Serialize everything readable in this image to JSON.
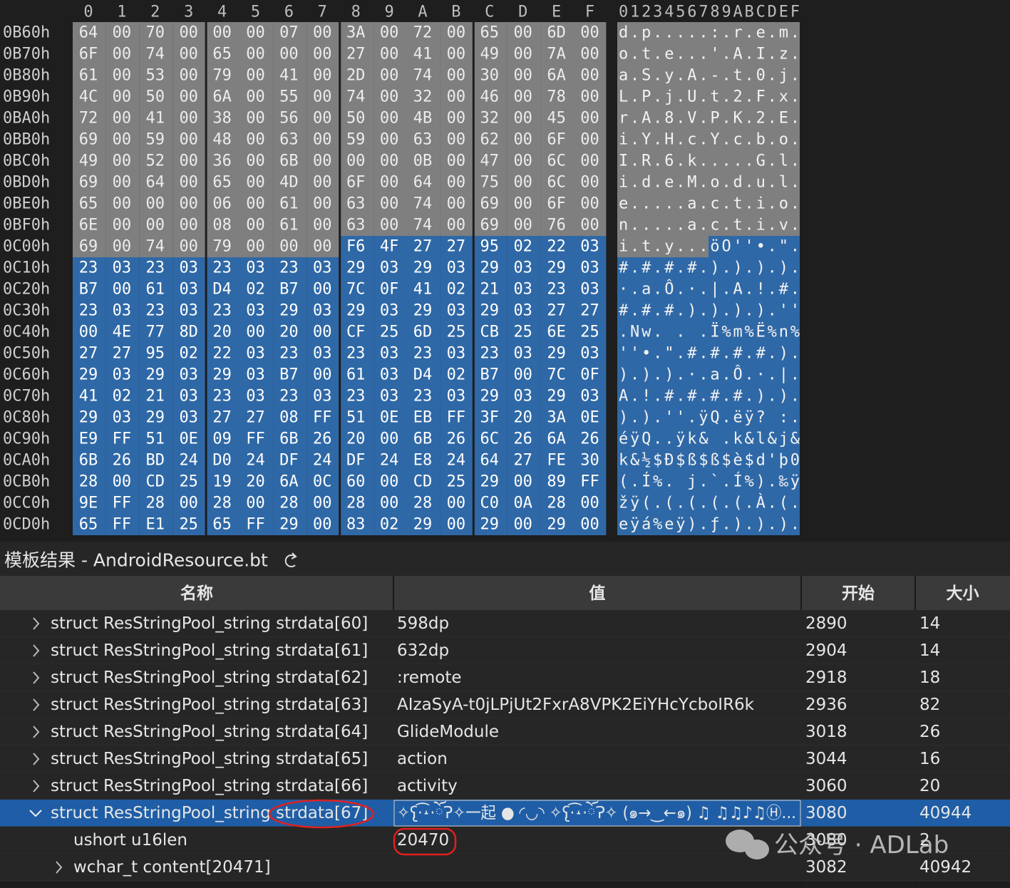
{
  "hex_view": {
    "column_headers": [
      "0",
      "1",
      "2",
      "3",
      "4",
      "5",
      "6",
      "7",
      "8",
      "9",
      "A",
      "B",
      "C",
      "D",
      "E",
      "F"
    ],
    "ascii_header": "0123456789ABCDEF",
    "rows": [
      {
        "offset": "0B60h",
        "bytes": [
          "64",
          "00",
          "70",
          "00",
          "00",
          "00",
          "07",
          "00",
          "3A",
          "00",
          "72",
          "00",
          "65",
          "00",
          "6D",
          "00"
        ],
        "ascii": "d.p.....:.r.e.m."
      },
      {
        "offset": "0B70h",
        "bytes": [
          "6F",
          "00",
          "74",
          "00",
          "65",
          "00",
          "00",
          "00",
          "27",
          "00",
          "41",
          "00",
          "49",
          "00",
          "7A",
          "00"
        ],
        "ascii": "o.t.e...'.A.I.z."
      },
      {
        "offset": "0B80h",
        "bytes": [
          "61",
          "00",
          "53",
          "00",
          "79",
          "00",
          "41",
          "00",
          "2D",
          "00",
          "74",
          "00",
          "30",
          "00",
          "6A",
          "00"
        ],
        "ascii": "a.S.y.A.-.t.0.j."
      },
      {
        "offset": "0B90h",
        "bytes": [
          "4C",
          "00",
          "50",
          "00",
          "6A",
          "00",
          "55",
          "00",
          "74",
          "00",
          "32",
          "00",
          "46",
          "00",
          "78",
          "00"
        ],
        "ascii": "L.P.j.U.t.2.F.x."
      },
      {
        "offset": "0BA0h",
        "bytes": [
          "72",
          "00",
          "41",
          "00",
          "38",
          "00",
          "56",
          "00",
          "50",
          "00",
          "4B",
          "00",
          "32",
          "00",
          "45",
          "00"
        ],
        "ascii": "r.A.8.V.P.K.2.E."
      },
      {
        "offset": "0BB0h",
        "bytes": [
          "69",
          "00",
          "59",
          "00",
          "48",
          "00",
          "63",
          "00",
          "59",
          "00",
          "63",
          "00",
          "62",
          "00",
          "6F",
          "00"
        ],
        "ascii": "i.Y.H.c.Y.c.b.o."
      },
      {
        "offset": "0BC0h",
        "bytes": [
          "49",
          "00",
          "52",
          "00",
          "36",
          "00",
          "6B",
          "00",
          "00",
          "00",
          "0B",
          "00",
          "47",
          "00",
          "6C",
          "00"
        ],
        "ascii": "I.R.6.k.....G.l."
      },
      {
        "offset": "0BD0h",
        "bytes": [
          "69",
          "00",
          "64",
          "00",
          "65",
          "00",
          "4D",
          "00",
          "6F",
          "00",
          "64",
          "00",
          "75",
          "00",
          "6C",
          "00"
        ],
        "ascii": "i.d.e.M.o.d.u.l."
      },
      {
        "offset": "0BE0h",
        "bytes": [
          "65",
          "00",
          "00",
          "00",
          "06",
          "00",
          "61",
          "00",
          "63",
          "00",
          "74",
          "00",
          "69",
          "00",
          "6F",
          "00"
        ],
        "ascii": "e.....a.c.t.i.o."
      },
      {
        "offset": "0BF0h",
        "bytes": [
          "6E",
          "00",
          "00",
          "00",
          "08",
          "00",
          "61",
          "00",
          "63",
          "00",
          "74",
          "00",
          "69",
          "00",
          "76",
          "00"
        ],
        "ascii": "n.....a.c.t.i.v."
      },
      {
        "offset": "0C00h",
        "bytes": [
          "69",
          "00",
          "74",
          "00",
          "79",
          "00",
          "00",
          "00",
          "F6",
          "4F",
          "27",
          "27",
          "95",
          "02",
          "22",
          "03"
        ],
        "ascii": "i.t.y...öO''•.\"."
      },
      {
        "offset": "0C10h",
        "bytes": [
          "23",
          "03",
          "23",
          "03",
          "23",
          "03",
          "23",
          "03",
          "29",
          "03",
          "29",
          "03",
          "29",
          "03",
          "29",
          "03"
        ],
        "ascii": "#.#.#.#.).).).)."
      },
      {
        "offset": "0C20h",
        "bytes": [
          "B7",
          "00",
          "61",
          "03",
          "D4",
          "02",
          "B7",
          "00",
          "7C",
          "0F",
          "41",
          "02",
          "21",
          "03",
          "23",
          "03"
        ],
        "ascii": "·.a.Ô.·.|.A.!.#."
      },
      {
        "offset": "0C30h",
        "bytes": [
          "23",
          "03",
          "23",
          "03",
          "23",
          "03",
          "29",
          "03",
          "29",
          "03",
          "29",
          "03",
          "29",
          "03",
          "27",
          "27"
        ],
        "ascii": "#.#.#.).).).).''"
      },
      {
        "offset": "0C40h",
        "bytes": [
          "00",
          "4E",
          "77",
          "8D",
          "20",
          "00",
          "20",
          "00",
          "CF",
          "25",
          "6D",
          "25",
          "CB",
          "25",
          "6E",
          "25"
        ],
        "ascii": ".Nw. . .Ï%m%Ë%n%"
      },
      {
        "offset": "0C50h",
        "bytes": [
          "27",
          "27",
          "95",
          "02",
          "22",
          "03",
          "23",
          "03",
          "23",
          "03",
          "23",
          "03",
          "23",
          "03",
          "29",
          "03"
        ],
        "ascii": "''•.\".#.#.#.#.)."
      },
      {
        "offset": "0C60h",
        "bytes": [
          "29",
          "03",
          "29",
          "03",
          "29",
          "03",
          "B7",
          "00",
          "61",
          "03",
          "D4",
          "02",
          "B7",
          "00",
          "7C",
          "0F"
        ],
        "ascii": ").).).·.a.Ô.·.|."
      },
      {
        "offset": "0C70h",
        "bytes": [
          "41",
          "02",
          "21",
          "03",
          "23",
          "03",
          "23",
          "03",
          "23",
          "03",
          "23",
          "03",
          "29",
          "03",
          "29",
          "03"
        ],
        "ascii": "A.!.#.#.#.#.).)."
      },
      {
        "offset": "0C80h",
        "bytes": [
          "29",
          "03",
          "29",
          "03",
          "27",
          "27",
          "08",
          "FF",
          "51",
          "0E",
          "EB",
          "FF",
          "3F",
          "20",
          "3A",
          "0E"
        ],
        "ascii": ").).''.ÿQ.ëÿ? :."
      },
      {
        "offset": "0C90h",
        "bytes": [
          "E9",
          "FF",
          "51",
          "0E",
          "09",
          "FF",
          "6B",
          "26",
          "20",
          "00",
          "6B",
          "26",
          "6C",
          "26",
          "6A",
          "26"
        ],
        "ascii": "éÿQ..ÿk& .k&l&j&"
      },
      {
        "offset": "0CA0h",
        "bytes": [
          "6B",
          "26",
          "BD",
          "24",
          "D0",
          "24",
          "DF",
          "24",
          "DF",
          "24",
          "E8",
          "24",
          "64",
          "27",
          "FE",
          "30"
        ],
        "ascii": "k&½$Ð$ß$ß$è$d'þ0"
      },
      {
        "offset": "0CB0h",
        "bytes": [
          "28",
          "00",
          "CD",
          "25",
          "19",
          "20",
          "6A",
          "0C",
          "60",
          "00",
          "CD",
          "25",
          "29",
          "00",
          "89",
          "FF"
        ],
        "ascii": "(.Í%. j.`.Í%).‰ÿ"
      },
      {
        "offset": "0CC0h",
        "bytes": [
          "9E",
          "FF",
          "28",
          "00",
          "28",
          "00",
          "28",
          "00",
          "28",
          "00",
          "28",
          "00",
          "C0",
          "0A",
          "28",
          "00"
        ],
        "ascii": "žÿ(.(.(.(.(.À.(."
      },
      {
        "offset": "0CD0h",
        "bytes": [
          "65",
          "FF",
          "E1",
          "25",
          "65",
          "FF",
          "29",
          "00",
          "83",
          "02",
          "29",
          "00",
          "29",
          "00",
          "29",
          "00"
        ],
        "ascii": "eÿá%eÿ).ƒ.).).)."
      }
    ]
  },
  "template_results": {
    "title": "模板结果 - AndroidResource.bt",
    "columns": [
      "名称",
      "值",
      "开始",
      "大小"
    ],
    "rows": [
      {
        "name": "struct ResStringPool_string strdata[60]",
        "value": "598dp",
        "start": 2890,
        "size": 14
      },
      {
        "name": "struct ResStringPool_string strdata[61]",
        "value": "632dp",
        "start": 2904,
        "size": 14
      },
      {
        "name": "struct ResStringPool_string strdata[62]",
        "value": ":remote",
        "start": 2918,
        "size": 18
      },
      {
        "name": "struct ResStringPool_string strdata[63]",
        "value": "AIzaSyA-t0jLPjUt2FxrA8VPK2EiYHcYcboIR6k",
        "start": 2936,
        "size": 82
      },
      {
        "name": "struct ResStringPool_string strdata[64]",
        "value": "GlideModule",
        "start": 3018,
        "size": 26
      },
      {
        "name": "struct ResStringPool_string strdata[65]",
        "value": "action",
        "start": 3044,
        "size": 16
      },
      {
        "name": "struct ResStringPool_string strdata[66]",
        "value": "activity",
        "start": 3060,
        "size": 20
      },
      {
        "name": "struct ResStringPool_string strdata[67]",
        "value": "✧ʕ̢·͡˔·ོɁ✧一起 ● ◜◡◝ ✧ʕ̢·͡˔·ོɁ✧ (๑→‿←๑) ♫ ♫♫♪♫Ⓗ...",
        "start": 3080,
        "size": 40944
      },
      {
        "name": "ushort u16len",
        "value": "20470",
        "start": 3080,
        "size": 2
      },
      {
        "name": "wchar_t content[20471]",
        "value": "",
        "start": 3082,
        "size": 40942
      }
    ]
  },
  "watermark": "公众号 · ADLab"
}
